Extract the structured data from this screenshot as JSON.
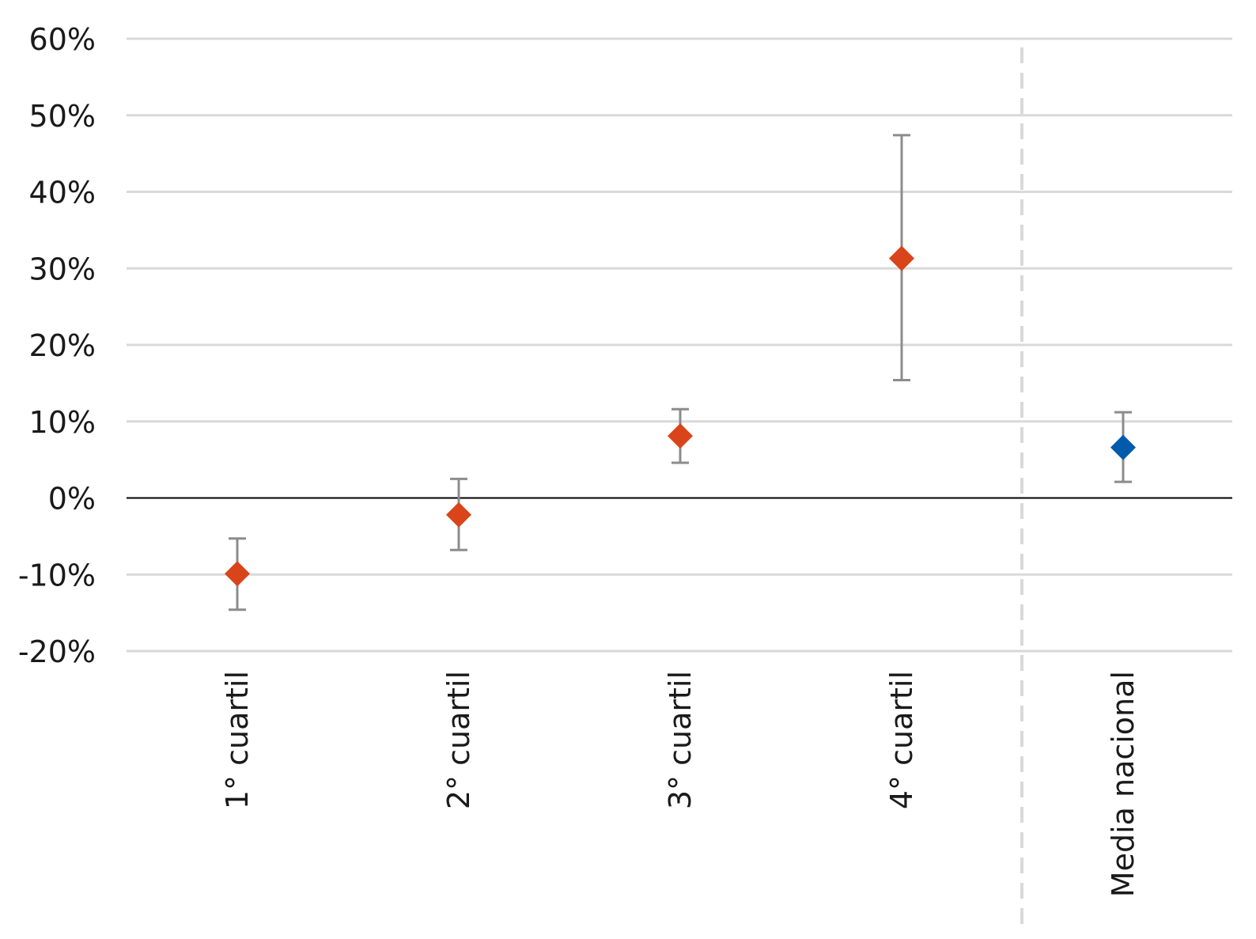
{
  "chart_data": {
    "type": "scatter",
    "title": "",
    "xlabel": "",
    "ylabel": "",
    "ylim": [
      -0.2,
      0.6
    ],
    "yticks": [
      -0.2,
      -0.1,
      0,
      0.1,
      0.2,
      0.3,
      0.4,
      0.5,
      0.6
    ],
    "ytick_labels": [
      "-20%",
      "-10%",
      "0%",
      "10%",
      "20%",
      "30%",
      "40%",
      "50%",
      "60%"
    ],
    "grid": true,
    "categories": [
      "1° cuartil",
      "2° cuartil",
      "3° cuartil",
      "4° cuartil",
      "Media nacional"
    ],
    "points": [
      {
        "category": "1° cuartil",
        "value": -0.099,
        "err_low": -0.146,
        "err_high": -0.053,
        "color": "#D9441A"
      },
      {
        "category": "2° cuartil",
        "value": -0.022,
        "err_low": -0.068,
        "err_high": 0.025,
        "color": "#D9441A"
      },
      {
        "category": "3° cuartil",
        "value": 0.081,
        "err_low": 0.046,
        "err_high": 0.116,
        "color": "#D9441A"
      },
      {
        "category": "4° cuartil",
        "value": 0.313,
        "err_low": 0.154,
        "err_high": 0.474,
        "color": "#D9441A"
      },
      {
        "category": "Media nacional",
        "value": 0.066,
        "err_low": 0.021,
        "err_high": 0.112,
        "color": "#005BAC"
      }
    ],
    "separator": "dashed vertical line between 4° cuartil and Media nacional",
    "colors": {
      "gridline": "#D9D9D9",
      "zero_line": "#000000",
      "error_bar": "#8C8C8C",
      "separator": "#D9D9D9"
    }
  }
}
